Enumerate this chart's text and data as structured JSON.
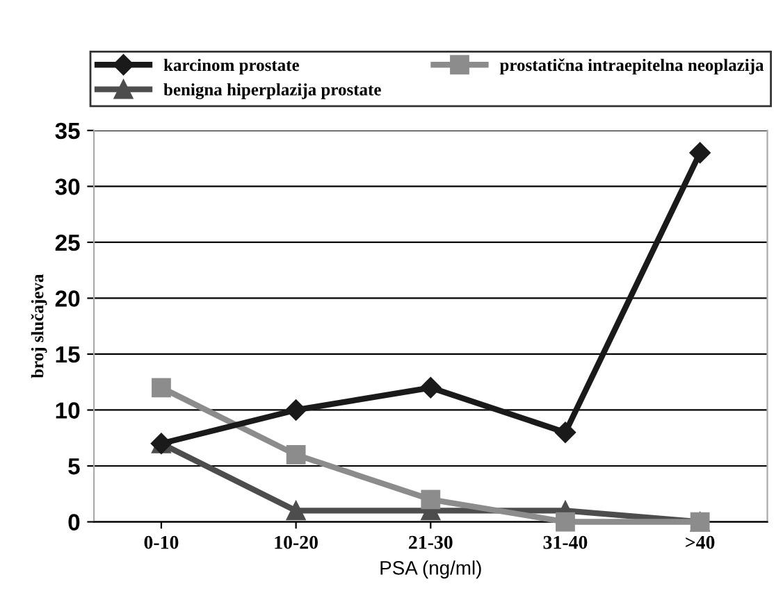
{
  "chart_data": {
    "type": "line",
    "xlabel": "PSA (ng/ml)",
    "ylabel": "broj slučajeva",
    "categories": [
      "0-10",
      "10-20",
      "21-30",
      "31-40",
      ">40"
    ],
    "series": [
      {
        "name": "karcinom prostate",
        "color": "#1a1a1a",
        "marker": "diamond",
        "values": [
          7,
          10,
          12,
          8,
          33
        ]
      },
      {
        "name": "prostatična intraepitelna neoplazija",
        "color": "#8c8c8c",
        "marker": "square",
        "values": [
          12,
          6,
          2,
          0,
          0
        ]
      },
      {
        "name": "benigna hiperplazija prostate",
        "color": "#4d4d4d",
        "marker": "triangle",
        "values": [
          7,
          1,
          1,
          1,
          0
        ]
      }
    ],
    "ylim": [
      0,
      35
    ],
    "yticks": [
      0,
      5,
      10,
      15,
      20,
      25,
      30,
      35
    ],
    "grid": "y",
    "legend": "top",
    "line_style": "solid"
  }
}
